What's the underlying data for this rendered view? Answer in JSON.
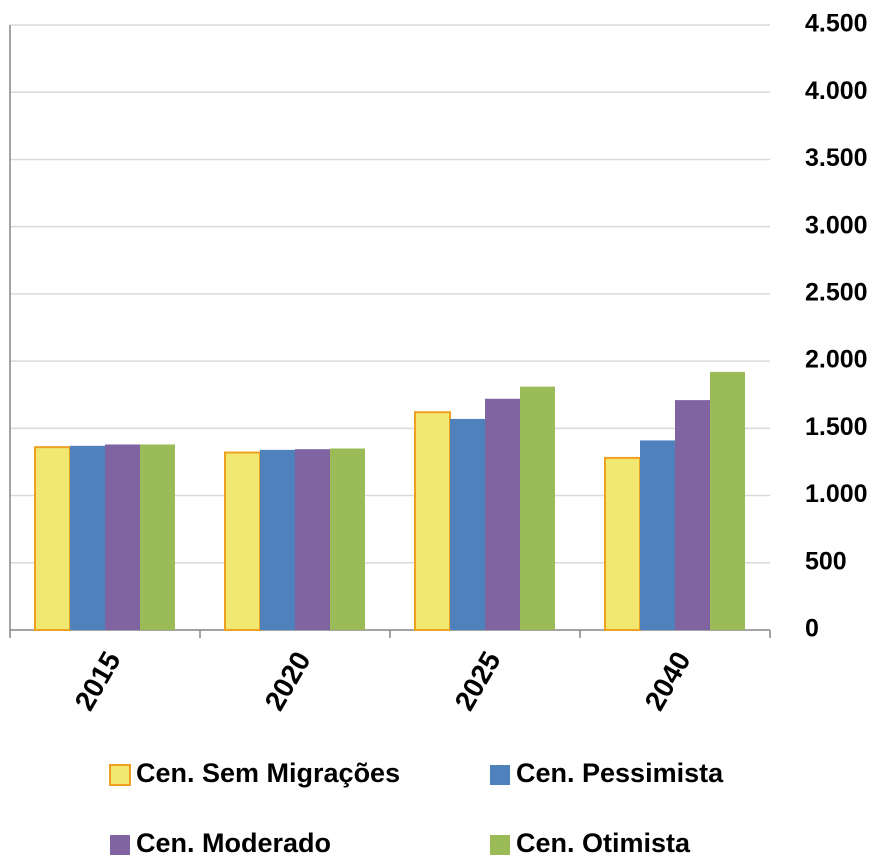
{
  "chart_data": {
    "type": "bar",
    "categories": [
      "2015",
      "2020",
      "2025",
      "2040"
    ],
    "series": [
      {
        "name": "Cen. Sem Migrações",
        "color": "#f0e870",
        "values": [
          1360,
          1320,
          1620,
          1280
        ]
      },
      {
        "name": "Cen. Pessimista",
        "color": "#4f81bd",
        "values": [
          1370,
          1340,
          1570,
          1410
        ]
      },
      {
        "name": "Cen. Moderado",
        "color": "#8064a2",
        "values": [
          1380,
          1345,
          1720,
          1710
        ]
      },
      {
        "name": "Cen. Otimista",
        "color": "#9bbb59",
        "values": [
          1380,
          1350,
          1810,
          1920
        ]
      }
    ],
    "ylim": [
      0,
      4500
    ],
    "yticks": [
      0,
      500,
      {
        "value": 1000,
        "label": "1.000"
      },
      {
        "value": 1500,
        "label": "1.500"
      },
      {
        "value": 2000,
        "label": "2.000"
      },
      {
        "value": 2500,
        "label": "2.500"
      },
      {
        "value": 3000,
        "label": "3.000"
      },
      {
        "value": 3500,
        "label": "3.500"
      },
      {
        "value": 4000,
        "label": "4.000"
      },
      {
        "value": 4500,
        "label": "4.500"
      }
    ],
    "grid": true
  }
}
